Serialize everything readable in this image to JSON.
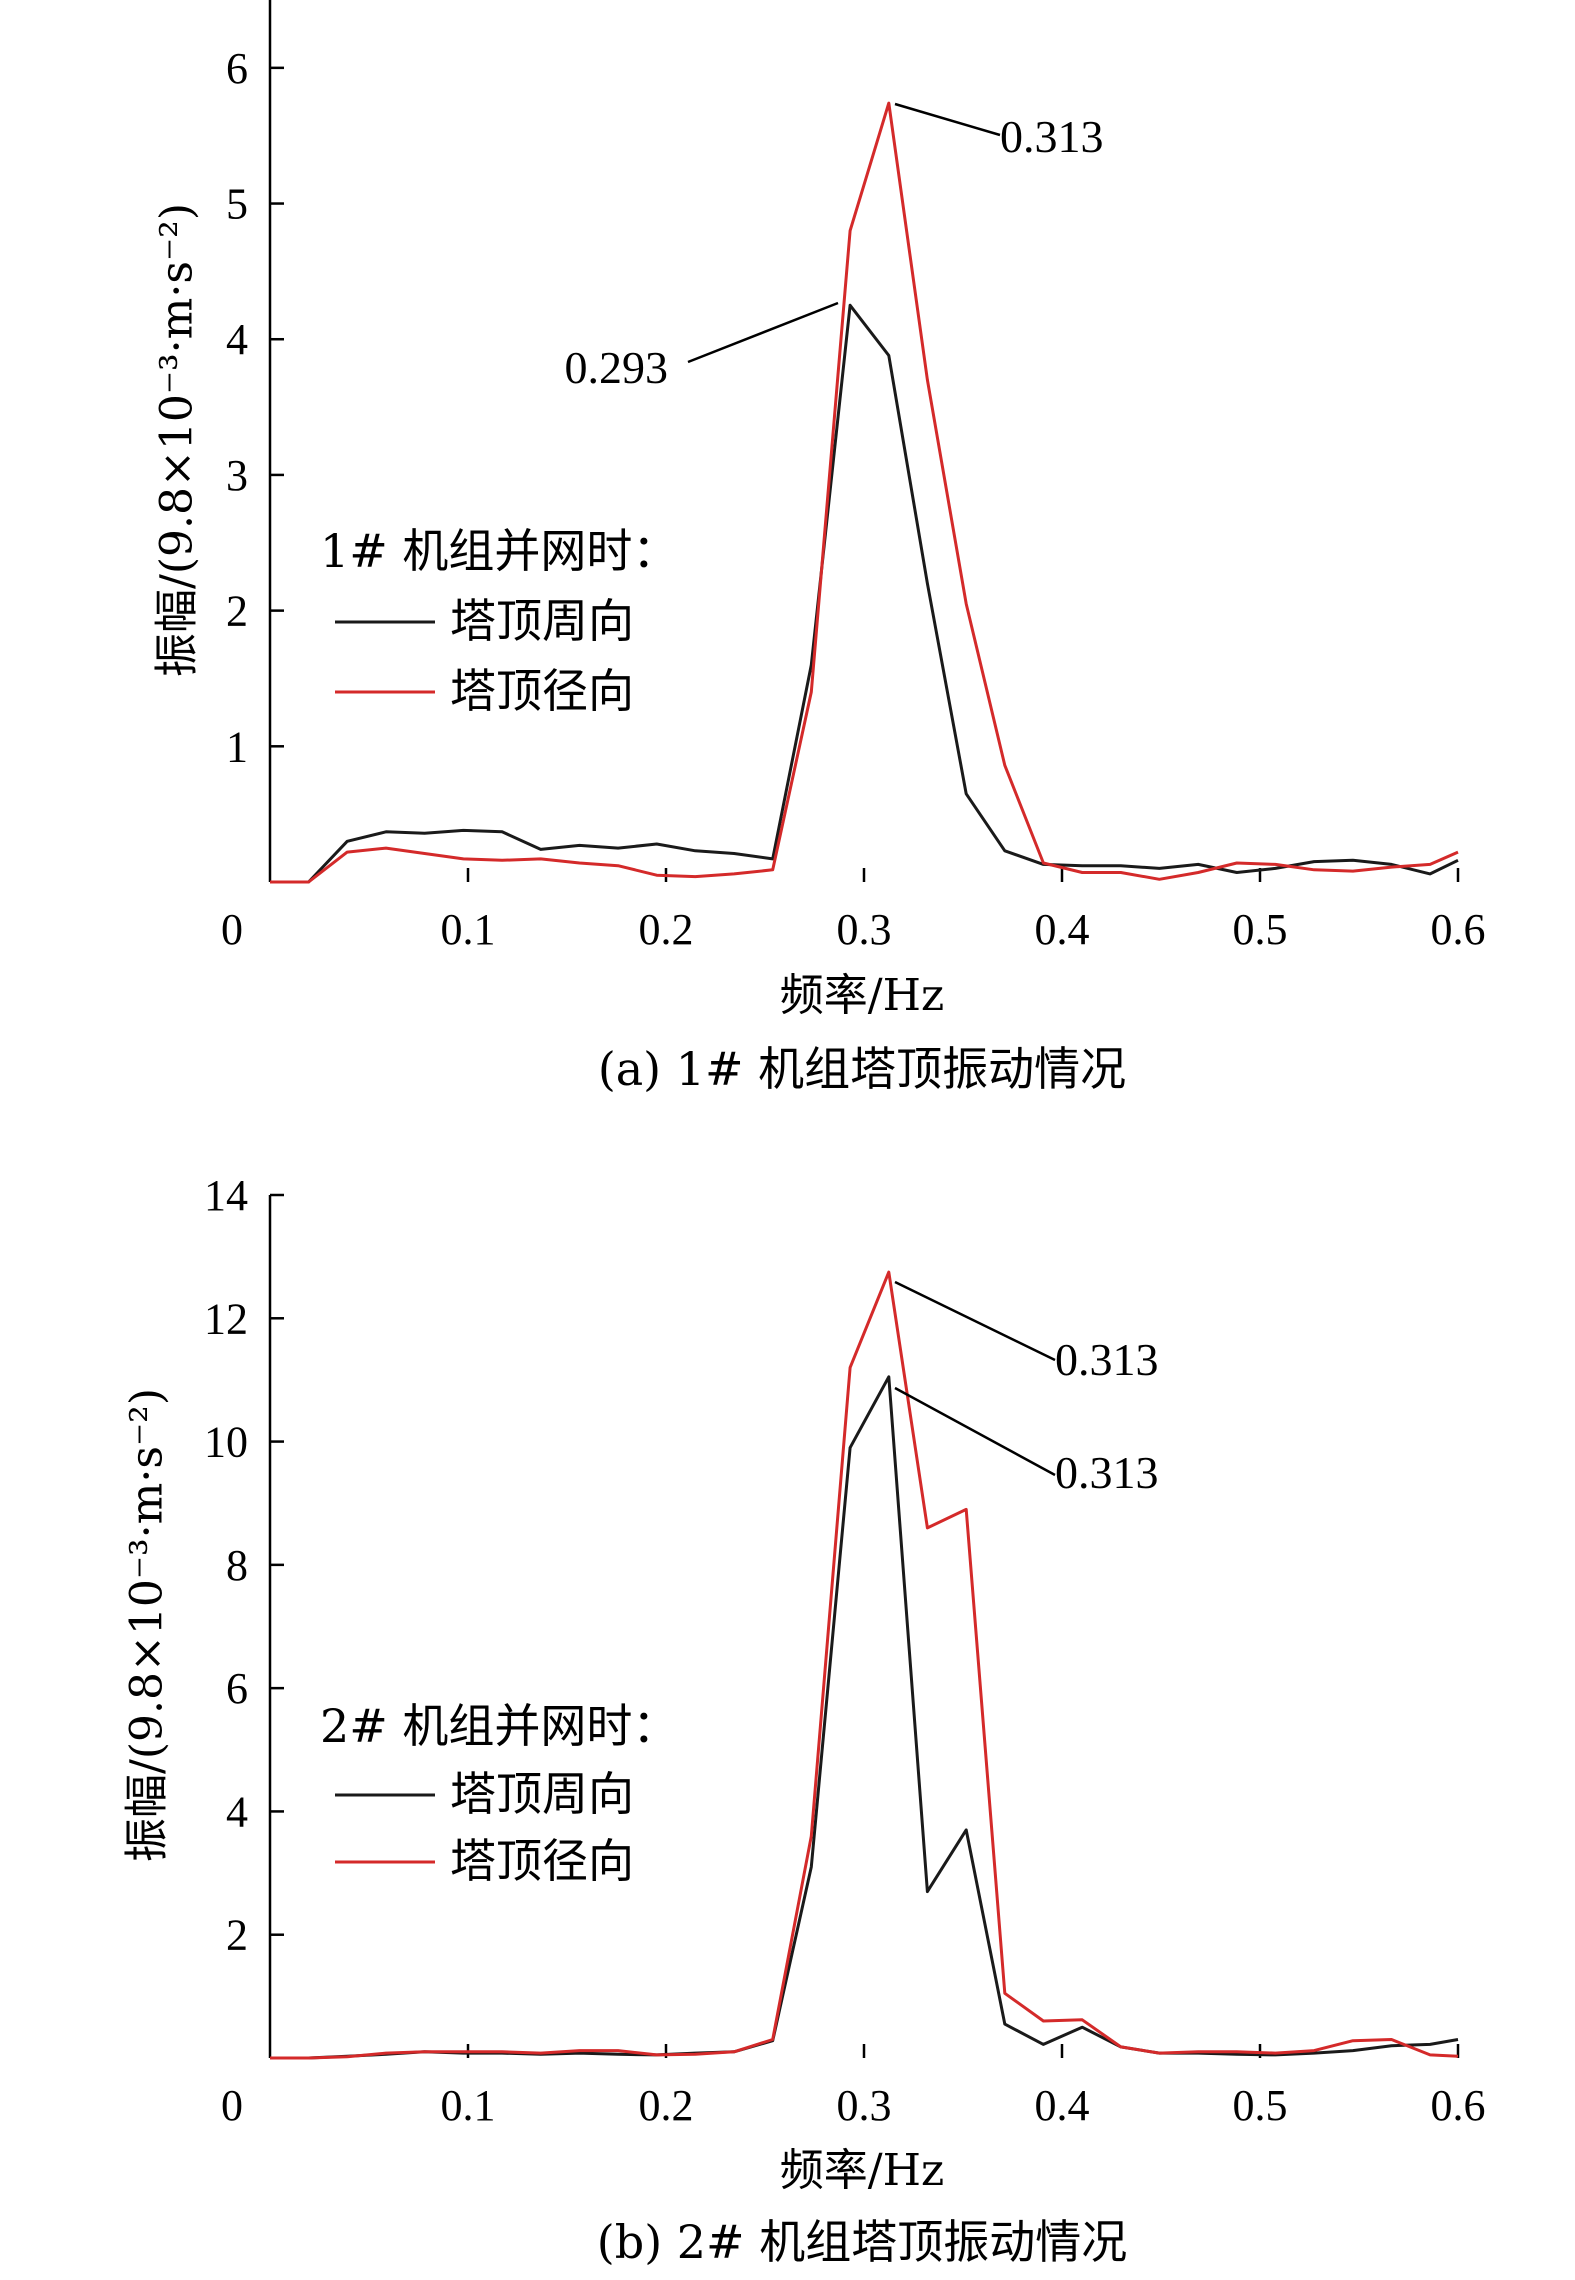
{
  "chart_data": [
    {
      "type": "line",
      "caption": "(a) 1# 机组塔顶振动情况",
      "xlabel": "频率/Hz",
      "ylabel": "振幅/(9.8×10⁻³·m·s⁻²)",
      "xlim": [
        0,
        0.6
      ],
      "ylim": [
        0,
        6.5
      ],
      "xticks": [
        0,
        0.1,
        0.2,
        0.3,
        0.4,
        0.5,
        0.6
      ],
      "xtick_labels": [
        "0",
        "0.1",
        "0.2",
        "0.3",
        "0.4",
        "0.5",
        "0.6"
      ],
      "yticks": [
        1,
        2,
        3,
        4,
        5,
        6
      ],
      "ytick_labels": [
        "1",
        "2",
        "3",
        "4",
        "5",
        "6"
      ],
      "legend_title": "1# 机组并网时：",
      "series": [
        {
          "name": "塔顶周向",
          "color": "#1a1a1a",
          "x": [
            0,
            0.0195,
            0.039,
            0.0586,
            0.0781,
            0.0977,
            0.1172,
            0.1367,
            0.1563,
            0.1758,
            0.1953,
            0.2148,
            0.2344,
            0.2539,
            0.2734,
            0.293,
            0.3125,
            0.332,
            0.3516,
            0.3711,
            0.3906,
            0.4102,
            0.4297,
            0.4492,
            0.4688,
            0.4883,
            0.5078,
            0.5273,
            0.5469,
            0.5664,
            0.5859,
            0.6
          ],
          "y": [
            0.0,
            0.0,
            0.3,
            0.37,
            0.36,
            0.38,
            0.37,
            0.24,
            0.27,
            0.25,
            0.28,
            0.23,
            0.21,
            0.17,
            1.6,
            4.25,
            3.88,
            2.2,
            0.65,
            0.23,
            0.13,
            0.12,
            0.12,
            0.1,
            0.13,
            0.07,
            0.1,
            0.15,
            0.16,
            0.13,
            0.06,
            0.16
          ]
        },
        {
          "name": "塔顶径向",
          "color": "#d42a2a",
          "x": [
            0,
            0.0195,
            0.039,
            0.0586,
            0.0781,
            0.0977,
            0.1172,
            0.1367,
            0.1563,
            0.1758,
            0.1953,
            0.2148,
            0.2344,
            0.2539,
            0.2734,
            0.293,
            0.3125,
            0.332,
            0.3516,
            0.3711,
            0.3906,
            0.4102,
            0.4297,
            0.4492,
            0.4688,
            0.4883,
            0.5078,
            0.5273,
            0.5469,
            0.5664,
            0.5859,
            0.6
          ],
          "y": [
            0.0,
            0.0,
            0.22,
            0.25,
            0.21,
            0.17,
            0.16,
            0.17,
            0.14,
            0.12,
            0.05,
            0.04,
            0.06,
            0.09,
            1.4,
            4.8,
            5.74,
            3.7,
            2.05,
            0.86,
            0.14,
            0.07,
            0.07,
            0.02,
            0.07,
            0.14,
            0.13,
            0.09,
            0.08,
            0.11,
            0.13,
            0.22
          ]
        }
      ],
      "annotations": [
        {
          "text": "0.313",
          "x": 0.3125,
          "y": 5.74
        },
        {
          "text": "0.293",
          "x": 0.293,
          "y": 4.25
        }
      ]
    },
    {
      "type": "line",
      "caption": "(b) 2# 机组塔顶振动情况",
      "xlabel": "频率/Hz",
      "ylabel": "振幅/(9.8×10⁻³·m·s⁻²)",
      "xlim": [
        0,
        0.6
      ],
      "ylim": [
        0,
        14
      ],
      "xticks": [
        0,
        0.1,
        0.2,
        0.3,
        0.4,
        0.5,
        0.6
      ],
      "xtick_labels": [
        "0",
        "0.1",
        "0.2",
        "0.3",
        "0.4",
        "0.5",
        "0.6"
      ],
      "yticks": [
        2,
        4,
        6,
        8,
        10,
        12,
        14
      ],
      "ytick_labels": [
        "2",
        "4",
        "6",
        "8",
        "10",
        "12",
        "14"
      ],
      "legend_title": "2# 机组并网时：",
      "series": [
        {
          "name": "塔顶周向",
          "color": "#1a1a1a",
          "x": [
            0,
            0.0195,
            0.039,
            0.0586,
            0.0781,
            0.0977,
            0.1172,
            0.1367,
            0.1563,
            0.1758,
            0.1953,
            0.2148,
            0.2344,
            0.2539,
            0.2734,
            0.293,
            0.3125,
            0.332,
            0.3516,
            0.3711,
            0.3906,
            0.4102,
            0.4297,
            0.4492,
            0.4688,
            0.4883,
            0.5078,
            0.5273,
            0.5469,
            0.5664,
            0.5859,
            0.6
          ],
          "y": [
            0.0,
            0.0,
            0.03,
            0.06,
            0.1,
            0.08,
            0.08,
            0.06,
            0.08,
            0.06,
            0.05,
            0.08,
            0.1,
            0.28,
            3.1,
            9.9,
            11.05,
            2.7,
            3.7,
            0.55,
            0.22,
            0.5,
            0.18,
            0.08,
            0.08,
            0.06,
            0.05,
            0.08,
            0.12,
            0.2,
            0.22,
            0.3
          ]
        },
        {
          "name": "塔顶径向",
          "color": "#d42a2a",
          "x": [
            0,
            0.0195,
            0.039,
            0.0586,
            0.0781,
            0.0977,
            0.1172,
            0.1367,
            0.1563,
            0.1758,
            0.1953,
            0.2148,
            0.2344,
            0.2539,
            0.2734,
            0.293,
            0.3125,
            0.332,
            0.3516,
            0.3711,
            0.3906,
            0.4102,
            0.4297,
            0.4492,
            0.4688,
            0.4883,
            0.5078,
            0.5273,
            0.5469,
            0.5664,
            0.5859,
            0.6
          ],
          "y": [
            0.0,
            0.0,
            0.02,
            0.08,
            0.1,
            0.1,
            0.1,
            0.08,
            0.12,
            0.12,
            0.05,
            0.06,
            0.1,
            0.3,
            3.6,
            11.2,
            12.75,
            8.6,
            8.9,
            1.05,
            0.6,
            0.62,
            0.18,
            0.08,
            0.1,
            0.1,
            0.08,
            0.12,
            0.28,
            0.3,
            0.05,
            0.03
          ]
        }
      ],
      "annotations": [
        {
          "text": "0.313",
          "x": 0.3125,
          "y": 12.75
        },
        {
          "text": "0.313",
          "x": 0.3125,
          "y": 11.05
        }
      ]
    }
  ]
}
